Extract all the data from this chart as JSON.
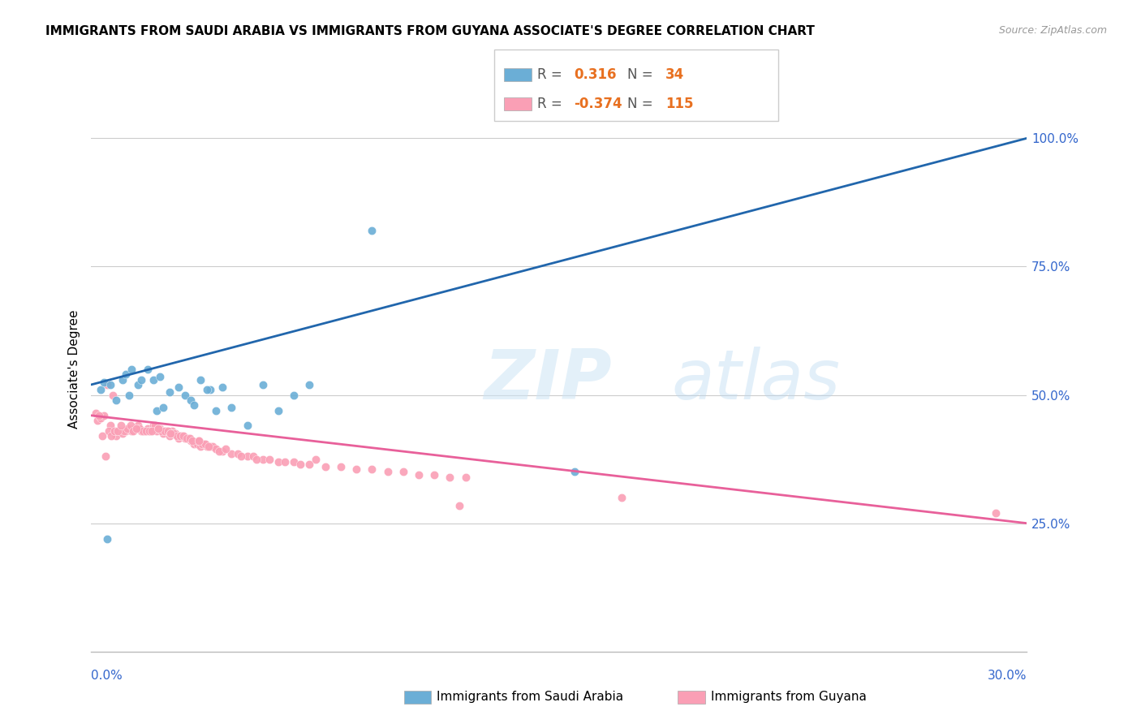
{
  "title": "IMMIGRANTS FROM SAUDI ARABIA VS IMMIGRANTS FROM GUYANA ASSOCIATE'S DEGREE CORRELATION CHART",
  "source": "Source: ZipAtlas.com",
  "ylabel": "Associate's Degree",
  "legend_r_blue_val": "0.316",
  "legend_n_blue_val": "34",
  "legend_r_pink_val": "-0.374",
  "legend_n_pink_val": "115",
  "legend_label_blue": "Immigrants from Saudi Arabia",
  "legend_label_pink": "Immigrants from Guyana",
  "blue_color": "#6baed6",
  "pink_color": "#fa9fb5",
  "blue_line_color": "#2166ac",
  "pink_line_color": "#e8609a",
  "blue_scatter_x": [
    0.5,
    1.2,
    1.5,
    1.8,
    2.0,
    2.2,
    2.5,
    2.8,
    3.0,
    3.2,
    3.5,
    3.8,
    4.0,
    4.2,
    4.5,
    5.0,
    5.5,
    6.0,
    6.5,
    7.0,
    0.3,
    0.4,
    0.6,
    0.8,
    1.0,
    1.1,
    1.3,
    1.6,
    2.1,
    2.3,
    9.0,
    3.3,
    3.7,
    15.5
  ],
  "blue_scatter_y": [
    22.0,
    50.0,
    52.0,
    55.0,
    53.0,
    53.5,
    50.5,
    51.5,
    50.0,
    49.0,
    53.0,
    51.0,
    47.0,
    51.5,
    47.5,
    44.0,
    52.0,
    47.0,
    50.0,
    52.0,
    51.0,
    52.5,
    52.0,
    49.0,
    53.0,
    54.0,
    55.0,
    53.0,
    47.0,
    47.5,
    82.0,
    48.0,
    51.0,
    35.0
  ],
  "pink_scatter_x": [
    0.5,
    0.6,
    0.7,
    0.8,
    0.9,
    1.0,
    1.1,
    1.2,
    1.3,
    1.4,
    1.5,
    1.6,
    1.7,
    1.8,
    1.9,
    2.0,
    2.1,
    2.2,
    2.3,
    2.4,
    2.5,
    2.6,
    2.7,
    2.8,
    2.9,
    3.0,
    3.1,
    3.2,
    3.3,
    3.4,
    3.5,
    3.6,
    3.7,
    3.8,
    3.9,
    4.0,
    4.2,
    4.5,
    5.0,
    5.5,
    6.0,
    6.5,
    7.0,
    8.0,
    9.0,
    10.0,
    11.0,
    12.0,
    0.2,
    0.3,
    0.4,
    1.05,
    1.15,
    1.25,
    1.35,
    1.55,
    1.65,
    1.75,
    1.85,
    2.05,
    2.15,
    2.25,
    2.35,
    2.45,
    2.55,
    2.65,
    2.75,
    2.85,
    2.95,
    3.05,
    3.15,
    3.25,
    3.45,
    3.55,
    3.65,
    3.75,
    4.1,
    4.3,
    4.7,
    5.2,
    5.7,
    6.2,
    6.7,
    7.5,
    8.5,
    9.5,
    10.5,
    11.5,
    7.2,
    11.8,
    17.0,
    29.0,
    0.35,
    0.45,
    0.55,
    0.65,
    0.75,
    0.85,
    0.95,
    1.45,
    1.95,
    2.15,
    2.55,
    3.45,
    0.15,
    0.25,
    4.8,
    5.3
  ],
  "pink_scatter_y": [
    52.0,
    44.0,
    50.0,
    42.0,
    43.0,
    42.5,
    43.0,
    43.5,
    43.0,
    43.5,
    44.0,
    43.0,
    43.0,
    43.5,
    43.0,
    44.0,
    43.0,
    43.5,
    42.5,
    43.0,
    42.0,
    43.0,
    42.5,
    41.5,
    42.0,
    41.5,
    41.5,
    41.0,
    40.5,
    40.5,
    40.0,
    40.5,
    40.0,
    40.0,
    40.0,
    39.5,
    39.0,
    38.5,
    38.0,
    37.5,
    37.0,
    37.0,
    36.5,
    36.0,
    35.5,
    35.0,
    34.5,
    34.0,
    45.0,
    45.5,
    46.0,
    43.0,
    43.5,
    44.0,
    43.0,
    43.5,
    43.0,
    43.0,
    43.0,
    44.0,
    43.5,
    43.0,
    43.0,
    43.0,
    42.5,
    42.5,
    42.0,
    42.0,
    42.0,
    41.5,
    41.5,
    41.0,
    41.0,
    40.5,
    40.5,
    40.0,
    39.0,
    39.5,
    38.5,
    38.0,
    37.5,
    37.0,
    36.5,
    36.0,
    35.5,
    35.0,
    34.5,
    34.0,
    37.5,
    28.5,
    30.0,
    27.0,
    42.0,
    38.0,
    43.0,
    42.0,
    43.0,
    43.0,
    44.0,
    43.5,
    43.0,
    43.5,
    42.5,
    41.0,
    46.5,
    46.0,
    38.0,
    37.5
  ],
  "blue_line_x0": 0,
  "blue_line_y0": 52.0,
  "blue_line_x1": 30,
  "blue_line_y1": 100.0,
  "pink_line_x0": 0,
  "pink_line_y0": 46.0,
  "pink_line_x1": 30,
  "pink_line_y1": 25.0,
  "xlim": [
    0,
    30
  ],
  "ylim": [
    0,
    110
  ]
}
